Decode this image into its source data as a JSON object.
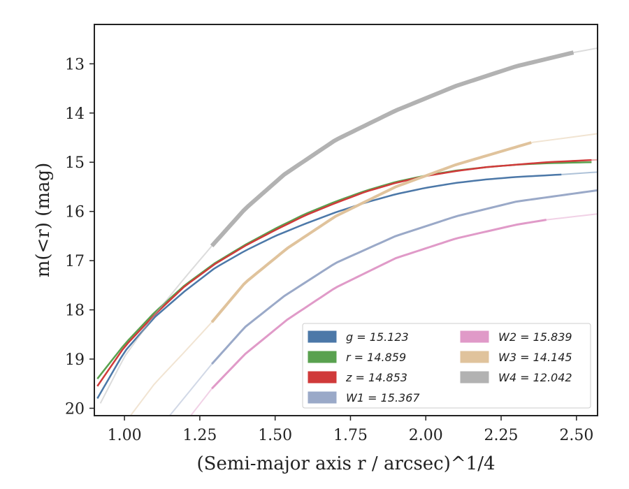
{
  "chart_data": {
    "type": "line",
    "xlabel": "(Semi-major axis r / arcsec)^1/4",
    "ylabel": "m(<r) (mag)",
    "xlim": [
      0.9,
      2.57
    ],
    "ylim": [
      20.15,
      12.2
    ],
    "y_inverted": true,
    "grid": false,
    "legend_placement": "lower-right",
    "x_ticks": [
      "1.00",
      "1.25",
      "1.50",
      "1.75",
      "2.00",
      "2.25",
      "2.50"
    ],
    "y_ticks": [
      "13",
      "14",
      "15",
      "16",
      "17",
      "18",
      "19",
      "20"
    ],
    "legend": [
      {
        "label": "g = 15.123",
        "color": "#4c78a8"
      },
      {
        "label": "r = 14.859",
        "color": "#59a14f"
      },
      {
        "label": "z = 14.853",
        "color": "#d03a3a"
      },
      {
        "label": "W1 = 15.367",
        "color": "#9aa9c8"
      },
      {
        "label": "W2 = 15.839",
        "color": "#e09ac8"
      },
      {
        "label": "W3 = 14.145",
        "color": "#e0c39c"
      },
      {
        "label": "W4 = 12.042",
        "color": "#b2b2b2"
      }
    ],
    "series": [
      {
        "name": "g",
        "color": "#4c78a8",
        "thick_x": [
          0.91,
          2.45
        ],
        "x": [
          0.91,
          1.0,
          1.1,
          1.2,
          1.3,
          1.4,
          1.5,
          1.6,
          1.7,
          1.8,
          1.9,
          2.0,
          2.1,
          2.2,
          2.3,
          2.45,
          2.57
        ],
        "y": [
          19.8,
          18.85,
          18.15,
          17.62,
          17.15,
          16.8,
          16.5,
          16.25,
          16.02,
          15.82,
          15.65,
          15.52,
          15.42,
          15.35,
          15.3,
          15.25,
          15.2
        ]
      },
      {
        "name": "r",
        "color": "#59a14f",
        "thick_x": [
          0.91,
          2.55
        ],
        "x": [
          0.91,
          1.0,
          1.1,
          1.2,
          1.3,
          1.4,
          1.5,
          1.6,
          1.7,
          1.8,
          1.9,
          2.0,
          2.1,
          2.2,
          2.3,
          2.4,
          2.55
        ],
        "y": [
          19.4,
          18.7,
          18.05,
          17.5,
          17.05,
          16.68,
          16.35,
          16.05,
          15.8,
          15.58,
          15.4,
          15.27,
          15.17,
          15.1,
          15.05,
          15.02,
          15.0
        ]
      },
      {
        "name": "z",
        "color": "#d03a3a",
        "thick_x": [
          0.91,
          2.55
        ],
        "x": [
          0.91,
          1.0,
          1.1,
          1.2,
          1.3,
          1.4,
          1.5,
          1.6,
          1.7,
          1.8,
          1.9,
          2.0,
          2.1,
          2.2,
          2.3,
          2.4,
          2.57
        ],
        "y": [
          19.55,
          18.75,
          18.1,
          17.52,
          17.07,
          16.7,
          16.38,
          16.08,
          15.83,
          15.6,
          15.42,
          15.28,
          15.18,
          15.1,
          15.05,
          15.0,
          14.95
        ]
      },
      {
        "name": "W1",
        "color": "#9aa9c8",
        "thick_x": [
          1.29,
          2.57
        ],
        "x": [
          1.15,
          1.29,
          1.4,
          1.53,
          1.7,
          1.9,
          2.1,
          2.3,
          2.57
        ],
        "y": [
          20.15,
          19.1,
          18.35,
          17.72,
          17.05,
          16.5,
          16.1,
          15.8,
          15.57
        ]
      },
      {
        "name": "W2",
        "color": "#e09ac8",
        "thick_x": [
          1.29,
          2.4
        ],
        "x": [
          1.22,
          1.29,
          1.4,
          1.54,
          1.7,
          1.9,
          2.1,
          2.3,
          2.4,
          2.57
        ],
        "y": [
          20.15,
          19.6,
          18.9,
          18.2,
          17.55,
          16.95,
          16.55,
          16.27,
          16.17,
          16.05
        ]
      },
      {
        "name": "W3",
        "color": "#e0c39c",
        "thick_x": [
          1.29,
          2.35
        ],
        "x": [
          1.02,
          1.1,
          1.2,
          1.29,
          1.4,
          1.54,
          1.7,
          1.9,
          2.1,
          2.35,
          2.57
        ],
        "y": [
          20.15,
          19.5,
          18.85,
          18.25,
          17.45,
          16.75,
          16.1,
          15.5,
          15.05,
          14.6,
          14.42
        ]
      },
      {
        "name": "W4",
        "color": "#b2b2b2",
        "thick_x": [
          1.29,
          2.49
        ],
        "x": [
          0.92,
          1.0,
          1.1,
          1.2,
          1.29,
          1.4,
          1.53,
          1.7,
          1.9,
          2.1,
          2.3,
          2.49,
          2.57
        ],
        "y": [
          19.9,
          18.95,
          18.1,
          17.35,
          16.7,
          15.95,
          15.25,
          14.55,
          13.95,
          13.45,
          13.05,
          12.77,
          12.68
        ]
      }
    ]
  }
}
